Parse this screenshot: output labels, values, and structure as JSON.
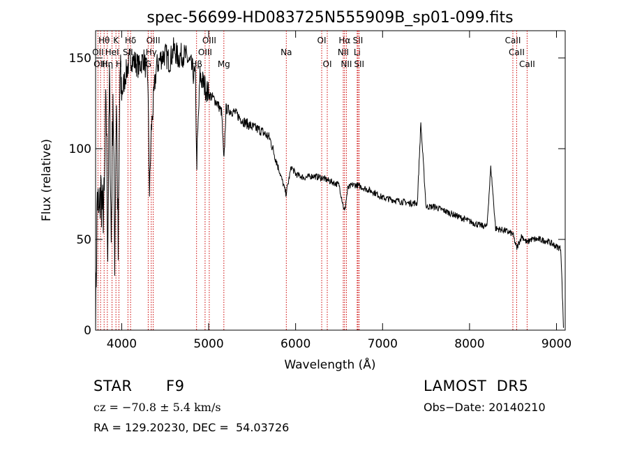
{
  "chart_data": {
    "type": "line",
    "title": "spec-56699-HD083725N555909B_sp01-099.fits",
    "xlabel": "Wavelength (Å)",
    "ylabel": "Flux (relative)",
    "xlim": [
      3700,
      9100
    ],
    "ylim": [
      0,
      165
    ],
    "xticks": [
      4000,
      5000,
      6000,
      7000,
      8000,
      9000
    ],
    "yticks": [
      0,
      50,
      100,
      150
    ],
    "grid": false,
    "line_color": "#000000",
    "marker_color": "#cc0000",
    "series": [
      {
        "x": [
          3700,
          3720,
          3740,
          3760,
          3780,
          3800,
          3820,
          3840,
          3860,
          3880,
          3900,
          3920,
          3940,
          3960,
          3980,
          4000,
          4050,
          4100,
          4150,
          4200,
          4250,
          4300,
          4320,
          4340,
          4380,
          4400,
          4450,
          4500,
          4550,
          4600,
          4650,
          4700,
          4750,
          4800,
          4850,
          4861,
          4900,
          4950,
          5000,
          5050,
          5100,
          5150,
          5175,
          5200,
          5300,
          5400,
          5500,
          5600,
          5700,
          5800,
          5890,
          5950,
          6000,
          6100,
          6200,
          6300,
          6400,
          6500,
          6563,
          6600,
          6650,
          6700,
          6800,
          6900,
          7000,
          7100,
          7200,
          7300,
          7400,
          7440,
          7500,
          7600,
          7700,
          7800,
          7900,
          8000,
          8100,
          8200,
          8245,
          8300,
          8400,
          8498,
          8542,
          8600,
          8662,
          8700,
          8800,
          8900,
          9000,
          9050,
          9080
        ],
        "y": [
          2,
          75,
          60,
          78,
          65,
          70,
          130,
          45,
          138,
          48,
          135,
          42,
          130,
          40,
          140,
          130,
          142,
          150,
          148,
          145,
          150,
          140,
          75,
          110,
          135,
          145,
          150,
          152,
          148,
          155,
          150,
          152,
          150,
          145,
          138,
          90,
          140,
          135,
          130,
          128,
          125,
          120,
          92,
          122,
          120,
          115,
          112,
          110,
          106,
          90,
          75,
          90,
          86,
          84,
          85,
          84,
          82,
          80,
          65,
          78,
          80,
          80,
          78,
          76,
          73,
          72,
          71,
          70,
          70,
          114,
          68,
          68,
          66,
          64,
          62,
          60,
          58,
          57,
          90,
          56,
          55,
          53,
          45,
          52,
          48,
          50,
          50,
          49,
          46,
          45,
          2
        ]
      }
    ],
    "line_markers": [
      {
        "label": "Hθ",
        "x": 3798,
        "row": 1
      },
      {
        "label": "K",
        "x": 3934,
        "row": 1
      },
      {
        "label": "Hδ",
        "x": 4102,
        "row": 1
      },
      {
        "label": "OIII",
        "x": 4363,
        "row": 1
      },
      {
        "label": "OIII",
        "x": 5007,
        "row": 1
      },
      {
        "label": "OI",
        "x": 6300,
        "row": 1
      },
      {
        "label": "Hα",
        "x": 6563,
        "row": 1
      },
      {
        "label": "SII",
        "x": 6717,
        "row": 1
      },
      {
        "label": "CaII",
        "x": 8498,
        "row": 1
      },
      {
        "label": "OII",
        "x": 3727,
        "row": 2
      },
      {
        "label": "HeI",
        "x": 3889,
        "row": 2
      },
      {
        "label": "SII",
        "x": 4072,
        "row": 2
      },
      {
        "label": "Hγ",
        "x": 4340,
        "row": 2
      },
      {
        "label": "OIII",
        "x": 4959,
        "row": 2
      },
      {
        "label": "Na",
        "x": 5893,
        "row": 2
      },
      {
        "label": "NII",
        "x": 6548,
        "row": 2
      },
      {
        "label": "Li",
        "x": 6708,
        "row": 2
      },
      {
        "label": "CaII",
        "x": 8542,
        "row": 2
      },
      {
        "label": "OIII",
        "x": 3757,
        "row": 3
      },
      {
        "label": "Hη",
        "x": 3835,
        "row": 3
      },
      {
        "label": "H",
        "x": 3968,
        "row": 3
      },
      {
        "label": "G",
        "x": 4305,
        "row": 3
      },
      {
        "label": "Hβ",
        "x": 4861,
        "row": 3
      },
      {
        "label": "Mg",
        "x": 5175,
        "row": 3
      },
      {
        "label": "OI",
        "x": 6364,
        "row": 3
      },
      {
        "label": "NII",
        "x": 6584,
        "row": 3
      },
      {
        "label": "SII",
        "x": 6731,
        "row": 3
      },
      {
        "label": "CaII",
        "x": 8662,
        "row": 3
      }
    ]
  },
  "info": {
    "object_class": "STAR",
    "subclass": "F9",
    "cz": "cz = −70.8 ± 5.4 km/s",
    "coords": "RA = 129.20230, DEC =  54.03726",
    "survey": "LAMOST  DR5",
    "obs_date": "Obs−Date: 20140210"
  }
}
